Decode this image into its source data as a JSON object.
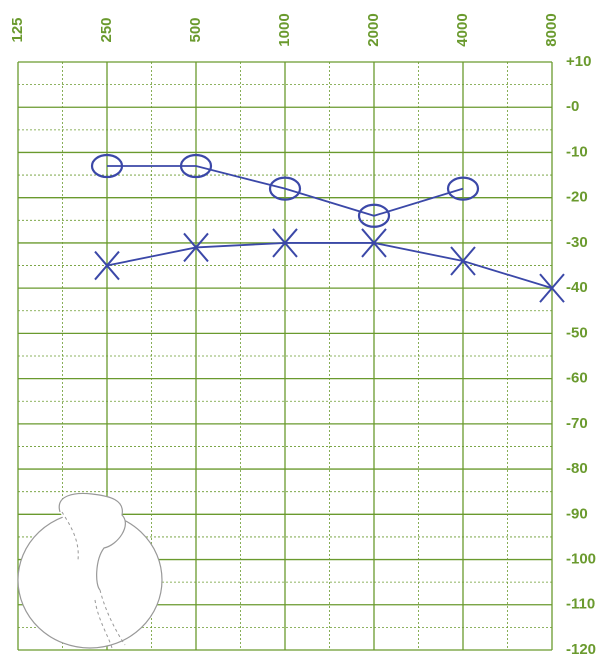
{
  "chart_data": {
    "type": "line",
    "categories": [
      "125",
      "250",
      "500",
      "1000",
      "2000",
      "4000",
      "8000"
    ],
    "series": [
      {
        "marker": "o",
        "color": "#3b48a8",
        "values": [
          null,
          -13,
          -13,
          -18,
          -24,
          -18,
          null
        ]
      },
      {
        "marker": "x",
        "color": "#3b48a8",
        "values": [
          null,
          -35,
          -31,
          -30,
          -30,
          -34,
          -40
        ]
      }
    ],
    "ylim": [
      -120,
      10
    ],
    "yticks": [
      {
        "value": 10,
        "label": "+10"
      },
      {
        "value": 0,
        "label": "-0"
      },
      -10,
      -20,
      -30,
      -40,
      -50,
      -60,
      -70,
      -80,
      -90,
      -100,
      -110,
      -120
    ],
    "grid": true,
    "grid_color": "#6a9a2e"
  }
}
